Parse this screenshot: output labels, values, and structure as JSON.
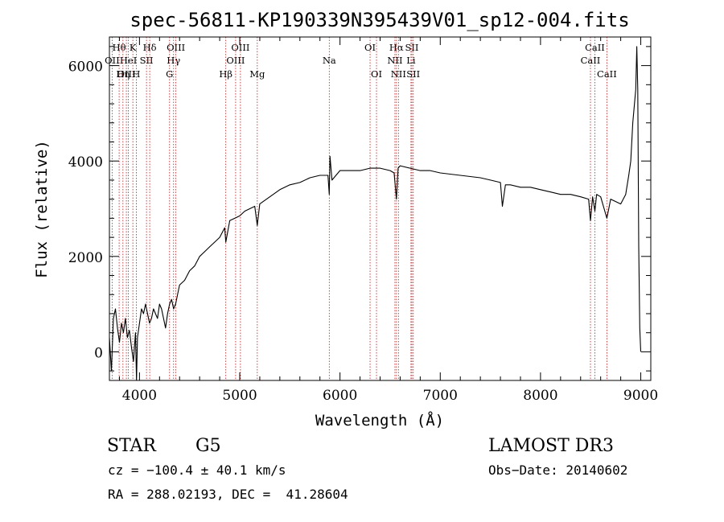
{
  "chart_data": {
    "type": "line",
    "title": "spec-56811-KP190339N395439V01_sp12-004.fits",
    "xlabel": "Wavelength (Å)",
    "ylabel": "Flux (relative)",
    "xlim": [
      3700,
      9100
    ],
    "ylim": [
      -600,
      6600
    ],
    "x_ticks": [
      4000,
      5000,
      6000,
      7000,
      8000,
      9000
    ],
    "x_tick_labels": [
      "4000",
      "5000",
      "6000",
      "7000",
      "8000",
      "9000"
    ],
    "y_ticks": [
      0,
      2000,
      4000,
      6000
    ],
    "y_tick_labels": [
      "0",
      "2000",
      "4000",
      "6000"
    ],
    "series": [
      {
        "name": "flux",
        "x": [
          3700,
          3720,
          3740,
          3760,
          3780,
          3800,
          3820,
          3840,
          3860,
          3880,
          3900,
          3920,
          3940,
          3960,
          3970,
          3980,
          4000,
          4020,
          4040,
          4060,
          4080,
          4100,
          4120,
          4140,
          4160,
          4180,
          4200,
          4220,
          4240,
          4260,
          4280,
          4300,
          4320,
          4340,
          4360,
          4380,
          4400,
          4450,
          4500,
          4550,
          4600,
          4650,
          4700,
          4750,
          4800,
          4850,
          4861,
          4900,
          4950,
          5000,
          5050,
          5100,
          5150,
          5175,
          5200,
          5300,
          5400,
          5500,
          5600,
          5700,
          5800,
          5880,
          5893,
          5900,
          5920,
          6000,
          6100,
          6200,
          6300,
          6400,
          6500,
          6540,
          6563,
          6580,
          6600,
          6700,
          6800,
          6900,
          7000,
          7200,
          7400,
          7500,
          7600,
          7620,
          7650,
          7700,
          7800,
          7900,
          8000,
          8100,
          8200,
          8300,
          8400,
          8480,
          8498,
          8520,
          8542,
          8560,
          8600,
          8662,
          8700,
          8750,
          8800,
          8850,
          8880,
          8900,
          8920,
          8950,
          8960,
          8970,
          8980,
          8990,
          9000
        ],
        "y": [
          300,
          -400,
          700,
          900,
          500,
          200,
          600,
          400,
          700,
          300,
          450,
          100,
          -200,
          400,
          -600,
          300,
          600,
          900,
          800,
          1000,
          800,
          600,
          700,
          900,
          800,
          700,
          1000,
          900,
          700,
          500,
          800,
          1000,
          1100,
          900,
          1000,
          1200,
          1400,
          1500,
          1700,
          1800,
          2000,
          2100,
          2200,
          2300,
          2400,
          2600,
          2300,
          2750,
          2800,
          2850,
          2950,
          3000,
          3050,
          2650,
          3100,
          3250,
          3400,
          3500,
          3550,
          3650,
          3700,
          3700,
          3300,
          4100,
          3600,
          3800,
          3800,
          3800,
          3850,
          3850,
          3800,
          3750,
          3200,
          3850,
          3900,
          3850,
          3800,
          3800,
          3750,
          3700,
          3650,
          3600,
          3550,
          3050,
          3500,
          3500,
          3450,
          3450,
          3400,
          3350,
          3300,
          3300,
          3250,
          3200,
          2750,
          3250,
          2950,
          3300,
          3250,
          2800,
          3200,
          3150,
          3100,
          3300,
          3700,
          4000,
          4800,
          5500,
          6400,
          5500,
          2200,
          500,
          0
        ]
      }
    ],
    "line_markers": [
      {
        "label": "Hθ",
        "wavelength": 3797,
        "row": 1
      },
      {
        "label": "OII",
        "wavelength": 3727,
        "row": 2
      },
      {
        "label": "OIII",
        "wavelength": 3869,
        "row": 3
      },
      {
        "label": "K",
        "wavelength": 3934,
        "row": 1
      },
      {
        "label": "HeI",
        "wavelength": 3889,
        "row": 2
      },
      {
        "label": "Hη",
        "wavelength": 3835,
        "row": 3
      },
      {
        "label": "SII",
        "wavelength": 4070,
        "row": 2
      },
      {
        "label": "H",
        "wavelength": 3968,
        "row": 3
      },
      {
        "label": "Hδ",
        "wavelength": 4102,
        "row": 1
      },
      {
        "label": "OIII",
        "wavelength": 4363,
        "row": 1
      },
      {
        "label": "Hγ",
        "wavelength": 4340,
        "row": 2
      },
      {
        "label": "G",
        "wavelength": 4300,
        "row": 3
      },
      {
        "label": "OIII",
        "wavelength": 5007,
        "row": 1
      },
      {
        "label": "OIII",
        "wavelength": 4959,
        "row": 2
      },
      {
        "label": "Hβ",
        "wavelength": 4861,
        "row": 3
      },
      {
        "label": "Mg",
        "wavelength": 5175,
        "row": 3
      },
      {
        "label": "Na",
        "wavelength": 5893,
        "row": 2
      },
      {
        "label": "OI",
        "wavelength": 6300,
        "row": 1
      },
      {
        "label": "OI",
        "wavelength": 6364,
        "row": 3
      },
      {
        "label": "Hα",
        "wavelength": 6563,
        "row": 1
      },
      {
        "label": "SII",
        "wavelength": 6717,
        "row": 1
      },
      {
        "label": "NII",
        "wavelength": 6548,
        "row": 2
      },
      {
        "label": "Li",
        "wavelength": 6708,
        "row": 2
      },
      {
        "label": "NII",
        "wavelength": 6583,
        "row": 3
      },
      {
        "label": "SII",
        "wavelength": 6731,
        "row": 3
      },
      {
        "label": "CaII",
        "wavelength": 8542,
        "row": 1
      },
      {
        "label": "CaII",
        "wavelength": 8498,
        "row": 2
      },
      {
        "label": "CaII",
        "wavelength": 8662,
        "row": 3
      }
    ],
    "annotations": {
      "object_class": "STAR",
      "subclass": "G5",
      "survey": "LAMOST DR3",
      "cz": "cz = −100.4 ± 40.1 km/s",
      "obs_date": "Obs−Date: 20140602",
      "coords": "RA = 288.02193, DEC =  41.28604"
    }
  }
}
